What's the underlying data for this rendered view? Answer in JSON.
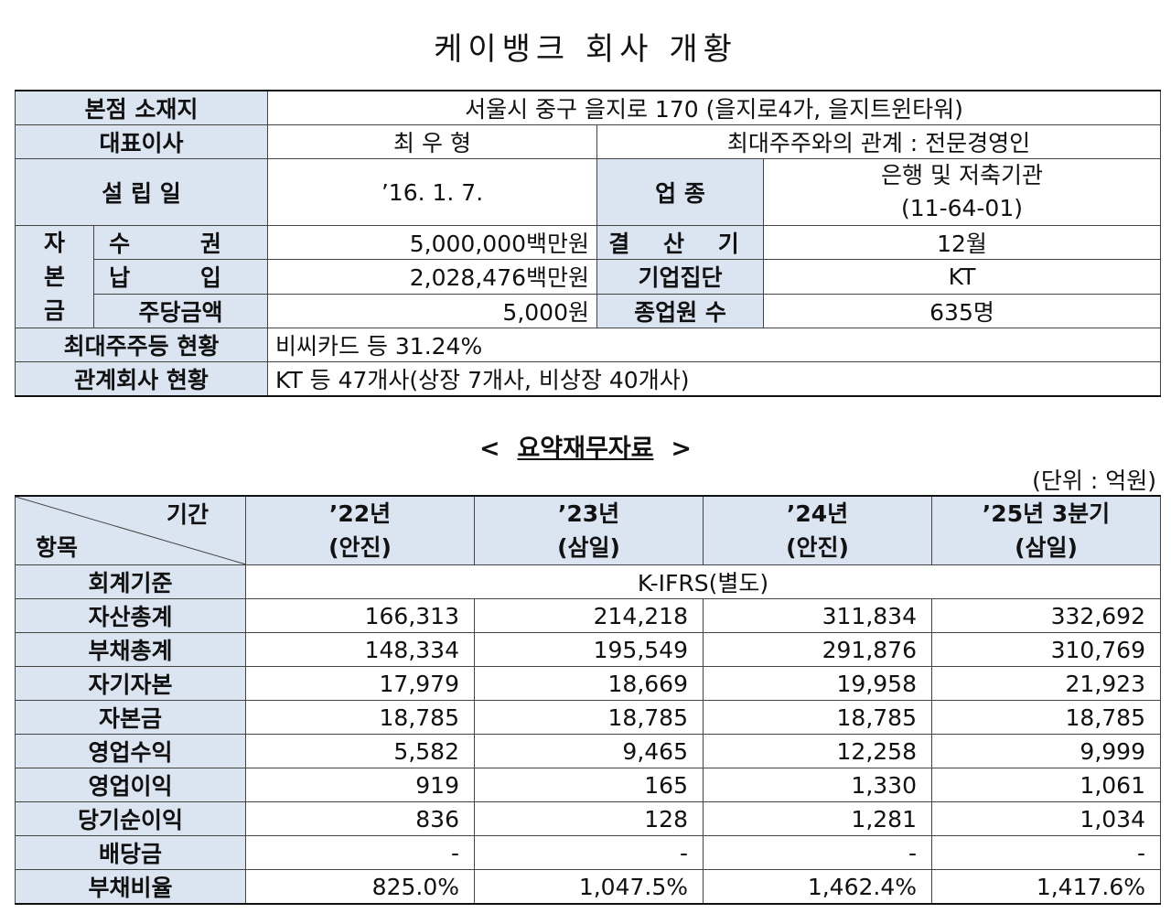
{
  "title": "케이뱅크 회사 개황",
  "overview": {
    "hq_label": "본점 소재지",
    "hq_value": "서울시 중구 을지로 170 (을지로4가, 을지트윈타워)",
    "ceo_label": "대표이사",
    "ceo_value": "최 우 형",
    "relation": "최대주주와의 관계 : 전문경영인",
    "founded_label": "설 립 일",
    "founded_value": "’16. 1. 7.",
    "industry_label": "업 종",
    "industry_value_1": "은행 및 저축기관",
    "industry_value_2": "(11-64-01)",
    "capital_label_chars": [
      "자",
      "본",
      "금"
    ],
    "authorized_label": "수 권",
    "authorized_value": "5,000,000백만원",
    "fiscal_label": "결 산 기",
    "fiscal_value": "12월",
    "paidin_label": "납 입",
    "paidin_value": "2,028,476백만원",
    "group_label": "기업집단",
    "group_value": "KT",
    "par_label": "주당금액",
    "par_value": "5,000원",
    "employees_label": "종업원 수",
    "employees_value": "635명",
    "shareholder_label": "최대주주등 현황",
    "shareholder_value": "비씨카드 등 31.24%",
    "affiliates_label": "관계회사 현황",
    "affiliates_value": "KT 등 47개사(상장 7개사, 비상장 40개사)"
  },
  "financial": {
    "subtitle_left": "<",
    "subtitle_main": "요약재무자료",
    "subtitle_right": ">",
    "unit": "(단위 : 억원)",
    "corner_top": "기간",
    "corner_bottom": "항목",
    "periods": [
      {
        "year": "’22년",
        "auditor": "(안진)"
      },
      {
        "year": "’23년",
        "auditor": "(삼일)"
      },
      {
        "year": "’24년",
        "auditor": "(안진)"
      },
      {
        "year": "’25년 3분기",
        "auditor": "(삼일)"
      }
    ],
    "standard_label": "회계기준",
    "standard_value": "K-IFRS(별도)",
    "rows": [
      {
        "label": "자산총계",
        "values": [
          "166,313",
          "214,218",
          "311,834",
          "332,692"
        ]
      },
      {
        "label": "부채총계",
        "values": [
          "148,334",
          "195,549",
          "291,876",
          "310,769"
        ]
      },
      {
        "label": "자기자본",
        "values": [
          "17,979",
          "18,669",
          "19,958",
          "21,923"
        ]
      },
      {
        "label": "자본금",
        "values": [
          "18,785",
          "18,785",
          "18,785",
          "18,785"
        ]
      },
      {
        "label": "영업수익",
        "values": [
          "5,582",
          "9,465",
          "12,258",
          "9,999"
        ]
      },
      {
        "label": "영업이익",
        "values": [
          "919",
          "165",
          "1,330",
          "1,061"
        ]
      },
      {
        "label": "당기순이익",
        "values": [
          "836",
          "128",
          "1,281",
          "1,034"
        ]
      },
      {
        "label": "배당금",
        "values": [
          "-",
          "-",
          "-",
          "-"
        ]
      },
      {
        "label": "부채비율",
        "values": [
          "825.0%",
          "1,047.5%",
          "1,462.4%",
          "1,417.6%"
        ]
      }
    ]
  }
}
